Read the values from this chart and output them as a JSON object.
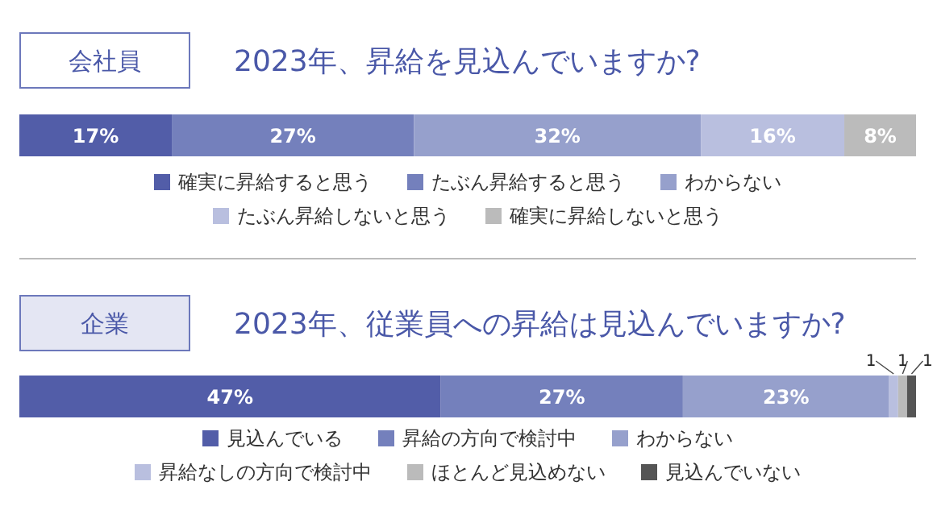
{
  "chart_data": [
    {
      "type": "bar",
      "orientation": "horizontal",
      "stacked": true,
      "title": "会社員",
      "subtitle": "2023年、昇給を見込んでいますか?",
      "categories": [
        null
      ],
      "xlim": [
        0,
        100
      ],
      "tick_labels": false,
      "legend": "bottom",
      "series": [
        {
          "name": "確実に昇給すると思う",
          "color": "#525da8",
          "values": [
            17
          ],
          "value_labels": [
            "17%"
          ]
        },
        {
          "name": "たぶん昇給すると思う",
          "color": "#7480bc",
          "values": [
            27
          ],
          "value_labels": [
            "27%"
          ]
        },
        {
          "name": "わからない",
          "color": "#96a0cc",
          "values": [
            32
          ],
          "value_labels": [
            "32%"
          ]
        },
        {
          "name": "たぶん昇給しないと思う",
          "color": "#b9bfdf",
          "values": [
            16
          ],
          "value_labels": [
            "16%"
          ]
        },
        {
          "name": "確実に昇給しないと思う",
          "color": "#bbbbbb",
          "values": [
            8
          ],
          "value_labels": [
            "8%"
          ]
        }
      ]
    },
    {
      "type": "bar",
      "orientation": "horizontal",
      "stacked": true,
      "title": "企業",
      "subtitle": "2023年、従業員への昇給は見込んでいますか?",
      "categories": [
        null
      ],
      "xlim": [
        0,
        100
      ],
      "tick_labels": false,
      "legend": "bottom",
      "series": [
        {
          "name": "見込んでいる",
          "color": "#525da8",
          "values": [
            47
          ],
          "value_labels": [
            "47%"
          ]
        },
        {
          "name": "昇給の方向で検討中",
          "color": "#7480bc",
          "values": [
            27
          ],
          "value_labels": [
            "27%"
          ]
        },
        {
          "name": "わからない",
          "color": "#96a0cc",
          "values": [
            23
          ],
          "value_labels": [
            "23%"
          ]
        },
        {
          "name": "昇給なしの方向で検討中",
          "color": "#b9bfdf",
          "values": [
            1
          ],
          "value_labels": [
            "1"
          ]
        },
        {
          "name": "ほとんど見込めない",
          "color": "#bbbbbb",
          "values": [
            1
          ],
          "value_labels": [
            "1"
          ]
        },
        {
          "name": "見込んでいない",
          "color": "#555555",
          "values": [
            1
          ],
          "value_labels": [
            "1"
          ]
        }
      ]
    }
  ]
}
